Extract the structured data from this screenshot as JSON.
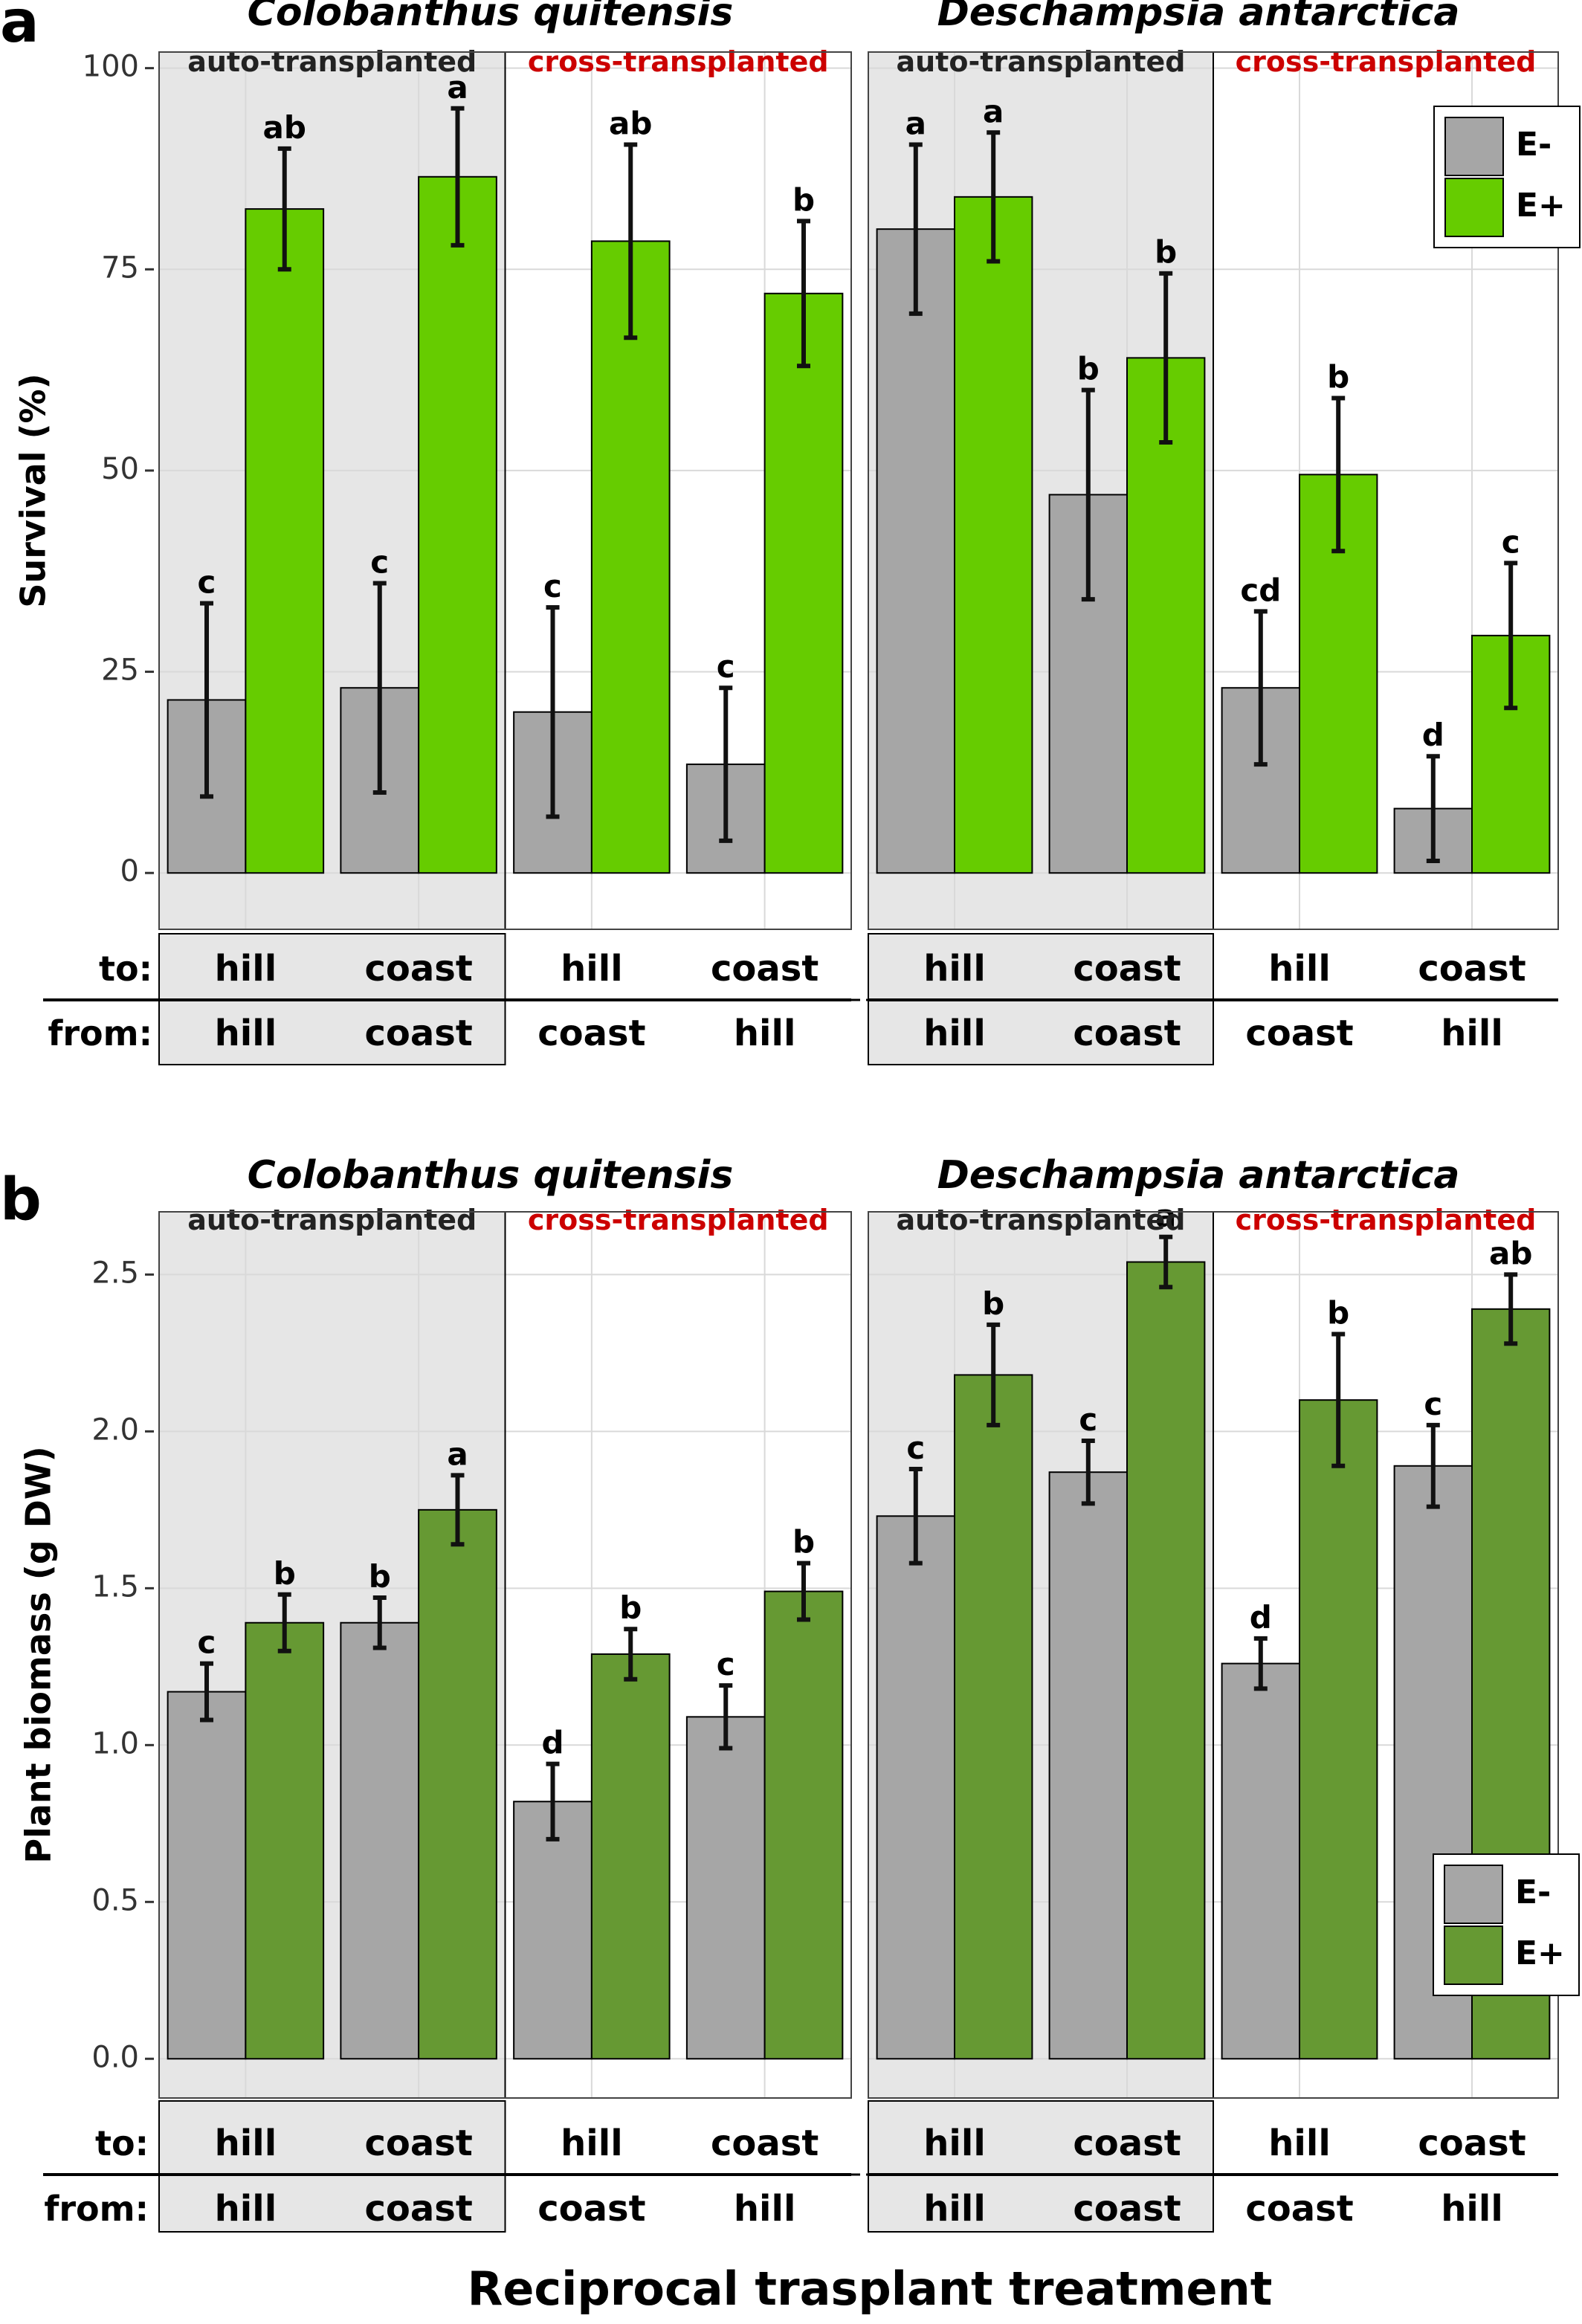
{
  "figure": {
    "x_axis_title": "Reciprocal trasplant treatment",
    "row_labels": {
      "to": "to:",
      "from": "from:"
    }
  },
  "chart_data": [
    {
      "type": "bar",
      "panel_label": "a",
      "ylabel": "Survival  (%)",
      "ylim": [
        -7,
        102
      ],
      "yticks": [
        0,
        25,
        50,
        75,
        100
      ],
      "tick_labels": [
        "0",
        "25",
        "50",
        "75",
        "100"
      ],
      "legend": {
        "position": "top-right",
        "entries": [
          "E-",
          "E+"
        ]
      },
      "colors": {
        "E-": "#a6a6a6",
        "E+": "#66cc00"
      },
      "species": [
        {
          "name": "Colobanthus quitensis",
          "groups": [
            {
              "label": "auto-transplanted",
              "shaded": true,
              "label_color": "#222222",
              "treatments": [
                {
                  "to": "hill",
                  "from": "hill",
                  "E-": {
                    "value": 21.5,
                    "err": 12,
                    "letter": "c"
                  },
                  "E+": {
                    "value": 82.5,
                    "err": 7.5,
                    "letter": "ab"
                  }
                },
                {
                  "to": "coast",
                  "from": "coast",
                  "E-": {
                    "value": 23,
                    "err": 13,
                    "letter": "c"
                  },
                  "E+": {
                    "value": 86.5,
                    "err": 8.5,
                    "letter": "a"
                  }
                }
              ]
            },
            {
              "label": "cross-transplanted",
              "shaded": false,
              "label_color": "#cc0000",
              "treatments": [
                {
                  "to": "hill",
                  "from": "coast",
                  "E-": {
                    "value": 20,
                    "err": 13,
                    "letter": "c"
                  },
                  "E+": {
                    "value": 78.5,
                    "err": 12,
                    "letter": "ab"
                  }
                },
                {
                  "to": "coast",
                  "from": "hill",
                  "E-": {
                    "value": 13.5,
                    "err": 9.5,
                    "letter": "c"
                  },
                  "E+": {
                    "value": 72,
                    "err": 9,
                    "letter": "b"
                  }
                }
              ]
            }
          ]
        },
        {
          "name": "Deschampsia antarctica",
          "groups": [
            {
              "label": "auto-transplanted",
              "shaded": true,
              "label_color": "#222222",
              "treatments": [
                {
                  "to": "hill",
                  "from": "hill",
                  "E-": {
                    "value": 80,
                    "err": 10.5,
                    "letter": "a"
                  },
                  "E+": {
                    "value": 84,
                    "err": 8,
                    "letter": "a"
                  }
                },
                {
                  "to": "coast",
                  "from": "coast",
                  "E-": {
                    "value": 47,
                    "err": 13,
                    "letter": "b"
                  },
                  "E+": {
                    "value": 64,
                    "err": 10.5,
                    "letter": "b"
                  }
                }
              ]
            },
            {
              "label": "cross-transplanted",
              "shaded": false,
              "label_color": "#cc0000",
              "treatments": [
                {
                  "to": "hill",
                  "from": "coast",
                  "E-": {
                    "value": 23,
                    "err": 9.5,
                    "letter": "cd"
                  },
                  "E+": {
                    "value": 49.5,
                    "err": 9.5,
                    "letter": "b"
                  }
                },
                {
                  "to": "coast",
                  "from": "hill",
                  "E-": {
                    "value": 8,
                    "err": 6.5,
                    "letter": "d"
                  },
                  "E+": {
                    "value": 29.5,
                    "err": 9,
                    "letter": "c"
                  }
                }
              ]
            }
          ]
        }
      ]
    },
    {
      "type": "bar",
      "panel_label": "b",
      "ylabel": "Plant biomass  (g DW)",
      "ylim": [
        -0.125,
        2.7
      ],
      "yticks": [
        0,
        0.5,
        1.0,
        1.5,
        2.0,
        2.5
      ],
      "tick_labels": [
        "0.0",
        "0.5",
        "1.0",
        "1.5",
        "2.0",
        "2.5"
      ],
      "legend": {
        "position": "bottom-right",
        "entries": [
          "E-",
          "E+"
        ]
      },
      "colors": {
        "E-": "#a6a6a6",
        "E+": "#669933"
      },
      "species": [
        {
          "name": "Colobanthus quitensis",
          "groups": [
            {
              "label": "auto-transplanted",
              "shaded": true,
              "label_color": "#222222",
              "treatments": [
                {
                  "to": "hill",
                  "from": "hill",
                  "E-": {
                    "value": 1.17,
                    "err": 0.09,
                    "letter": "c"
                  },
                  "E+": {
                    "value": 1.39,
                    "err": 0.09,
                    "letter": "b"
                  }
                },
                {
                  "to": "coast",
                  "from": "coast",
                  "E-": {
                    "value": 1.39,
                    "err": 0.08,
                    "letter": "b"
                  },
                  "E+": {
                    "value": 1.75,
                    "err": 0.11,
                    "letter": "a"
                  }
                }
              ]
            },
            {
              "label": "cross-transplanted",
              "shaded": false,
              "label_color": "#cc0000",
              "treatments": [
                {
                  "to": "hill",
                  "from": "coast",
                  "E-": {
                    "value": 0.82,
                    "err": 0.12,
                    "letter": "d"
                  },
                  "E+": {
                    "value": 1.29,
                    "err": 0.08,
                    "letter": "b"
                  }
                },
                {
                  "to": "coast",
                  "from": "hill",
                  "E-": {
                    "value": 1.09,
                    "err": 0.1,
                    "letter": "c"
                  },
                  "E+": {
                    "value": 1.49,
                    "err": 0.09,
                    "letter": "b"
                  }
                }
              ]
            }
          ]
        },
        {
          "name": "Deschampsia antarctica",
          "groups": [
            {
              "label": "auto-transplanted",
              "shaded": true,
              "label_color": "#222222",
              "treatments": [
                {
                  "to": "hill",
                  "from": "hill",
                  "E-": {
                    "value": 1.73,
                    "err": 0.15,
                    "letter": "c"
                  },
                  "E+": {
                    "value": 2.18,
                    "err": 0.16,
                    "letter": "b"
                  }
                },
                {
                  "to": "coast",
                  "from": "coast",
                  "E-": {
                    "value": 1.87,
                    "err": 0.1,
                    "letter": "c"
                  },
                  "E+": {
                    "value": 2.54,
                    "err": 0.08,
                    "letter": "a"
                  }
                }
              ]
            },
            {
              "label": "cross-transplanted",
              "shaded": false,
              "label_color": "#cc0000",
              "treatments": [
                {
                  "to": "hill",
                  "from": "coast",
                  "E-": {
                    "value": 1.26,
                    "err": 0.08,
                    "letter": "d"
                  },
                  "E+": {
                    "value": 2.1,
                    "err": 0.21,
                    "letter": "b"
                  }
                },
                {
                  "to": "coast",
                  "from": "hill",
                  "E-": {
                    "value": 1.89,
                    "err": 0.13,
                    "letter": "c"
                  },
                  "E+": {
                    "value": 2.39,
                    "err": 0.11,
                    "letter": "ab"
                  }
                }
              ]
            }
          ]
        }
      ]
    }
  ]
}
